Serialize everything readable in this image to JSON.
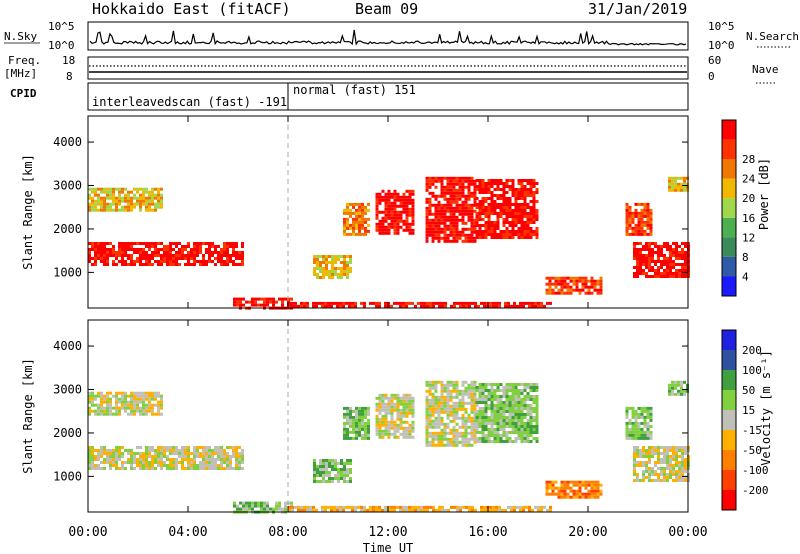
{
  "header": {
    "station": "Hokkaido East (fitACF)",
    "beam": "Beam 09",
    "date": "31/Jan/2019"
  },
  "top_panels": {
    "nsky": {
      "label": "N.Sky",
      "ticks": [
        "10^5",
        "10^0"
      ],
      "right_label": "N.Search",
      "right_ticks": [
        "10^5",
        "10^0"
      ]
    },
    "freq": {
      "label_line1": "Freq.",
      "label_line2": "[MHz]",
      "ticks": [
        "18",
        "8"
      ],
      "right_label": "Nave",
      "right_ticks": [
        "60",
        "0"
      ]
    },
    "cpid": {
      "label": "CPID",
      "segments": [
        {
          "name": "interleavedscan (fast) -191",
          "start_h": 0,
          "end_h": 8
        },
        {
          "name": "normal (fast) 151",
          "start_h": 8,
          "end_h": 24
        }
      ]
    }
  },
  "colors": {
    "power_scale": [
      "#1a1aff",
      "#2e5aa8",
      "#3a8a5a",
      "#4caf50",
      "#9fd84a",
      "#f0b800",
      "#f07800",
      "#ff3300",
      "#ff0000"
    ],
    "velocity_scale": [
      "#ff0000",
      "#ff4000",
      "#ff8000",
      "#ffb000",
      "#c0c0b8",
      "#80d040",
      "#40a040",
      "#3050a0",
      "#2020e0"
    ]
  },
  "chart_data": [
    {
      "type": "heatmap",
      "panel": "power",
      "xlabel": "",
      "ylabel": "Slant Range [km]",
      "xlim_hours": [
        0,
        24
      ],
      "ylim": [
        180,
        4600
      ],
      "y_ticks": [
        1000,
        2000,
        3000,
        4000
      ],
      "colorbar": {
        "label": "Power [dB]",
        "ticks": [
          4,
          8,
          12,
          16,
          20,
          24,
          28
        ]
      },
      "echo_regions": [
        {
          "t0": 0.0,
          "t1": 6.2,
          "r0": 1150,
          "r1": 1700,
          "level": 8
        },
        {
          "t0": 0.0,
          "t1": 3.0,
          "r0": 2450,
          "r1": 2950,
          "level": 5
        },
        {
          "t0": 5.8,
          "t1": 8.2,
          "r0": 200,
          "r1": 420,
          "level": 8
        },
        {
          "t0": 8.0,
          "t1": 18.5,
          "r0": 200,
          "r1": 320,
          "level": 8
        },
        {
          "t0": 9.0,
          "t1": 10.5,
          "r0": 900,
          "r1": 1400,
          "level": 5
        },
        {
          "t0": 10.2,
          "t1": 11.2,
          "r0": 1900,
          "r1": 2600,
          "level": 6
        },
        {
          "t0": 11.5,
          "t1": 13.0,
          "r0": 1900,
          "r1": 2900,
          "level": 8
        },
        {
          "t0": 13.5,
          "t1": 15.5,
          "r0": 1700,
          "r1": 3200,
          "level": 8
        },
        {
          "t0": 15.5,
          "t1": 18.0,
          "r0": 1800,
          "r1": 3150,
          "level": 8
        },
        {
          "t0": 18.3,
          "t1": 20.5,
          "r0": 550,
          "r1": 900,
          "level": 7
        },
        {
          "t0": 21.8,
          "t1": 24.0,
          "r0": 900,
          "r1": 1700,
          "level": 8
        },
        {
          "t0": 21.5,
          "t1": 22.5,
          "r0": 1900,
          "r1": 2600,
          "level": 7
        },
        {
          "t0": 23.2,
          "t1": 24.0,
          "r0": 2900,
          "r1": 3200,
          "level": 5
        }
      ]
    },
    {
      "type": "heatmap",
      "panel": "velocity",
      "xlabel": "Time UT",
      "ylabel": "Slant Range [km]",
      "xlim_hours": [
        0,
        24
      ],
      "ylim": [
        180,
        4600
      ],
      "y_ticks": [
        1000,
        2000,
        3000,
        4000
      ],
      "x_ticks": [
        "00:00",
        "04:00",
        "08:00",
        "12:00",
        "16:00",
        "20:00",
        "00:00"
      ],
      "colorbar": {
        "label": "Velocity [m s⁻¹]",
        "ticks": [
          -200,
          -100,
          -50,
          -15,
          15,
          50,
          100,
          200
        ]
      },
      "echo_regions": [
        {
          "t0": 0.0,
          "t1": 6.2,
          "r0": 1150,
          "r1": 1700,
          "level": 4
        },
        {
          "t0": 0.0,
          "t1": 3.0,
          "r0": 2450,
          "r1": 2950,
          "level": 4
        },
        {
          "t0": 5.8,
          "t1": 8.2,
          "r0": 200,
          "r1": 420,
          "level": 5
        },
        {
          "t0": 8.0,
          "t1": 18.5,
          "r0": 200,
          "r1": 320,
          "level": 3
        },
        {
          "t0": 9.0,
          "t1": 10.5,
          "r0": 900,
          "r1": 1400,
          "level": 5
        },
        {
          "t0": 10.2,
          "t1": 11.2,
          "r0": 1900,
          "r1": 2600,
          "level": 5
        },
        {
          "t0": 11.5,
          "t1": 13.0,
          "r0": 1900,
          "r1": 2900,
          "level": 4
        },
        {
          "t0": 13.5,
          "t1": 15.5,
          "r0": 1700,
          "r1": 3200,
          "level": 4
        },
        {
          "t0": 15.5,
          "t1": 18.0,
          "r0": 1800,
          "r1": 3150,
          "level": 5
        },
        {
          "t0": 18.3,
          "t1": 20.5,
          "r0": 550,
          "r1": 900,
          "level": 2
        },
        {
          "t0": 21.8,
          "t1": 24.0,
          "r0": 900,
          "r1": 1700,
          "level": 4
        },
        {
          "t0": 21.5,
          "t1": 22.5,
          "r0": 1900,
          "r1": 2600,
          "level": 5
        },
        {
          "t0": 23.2,
          "t1": 24.0,
          "r0": 2900,
          "r1": 3200,
          "level": 5
        }
      ]
    }
  ]
}
